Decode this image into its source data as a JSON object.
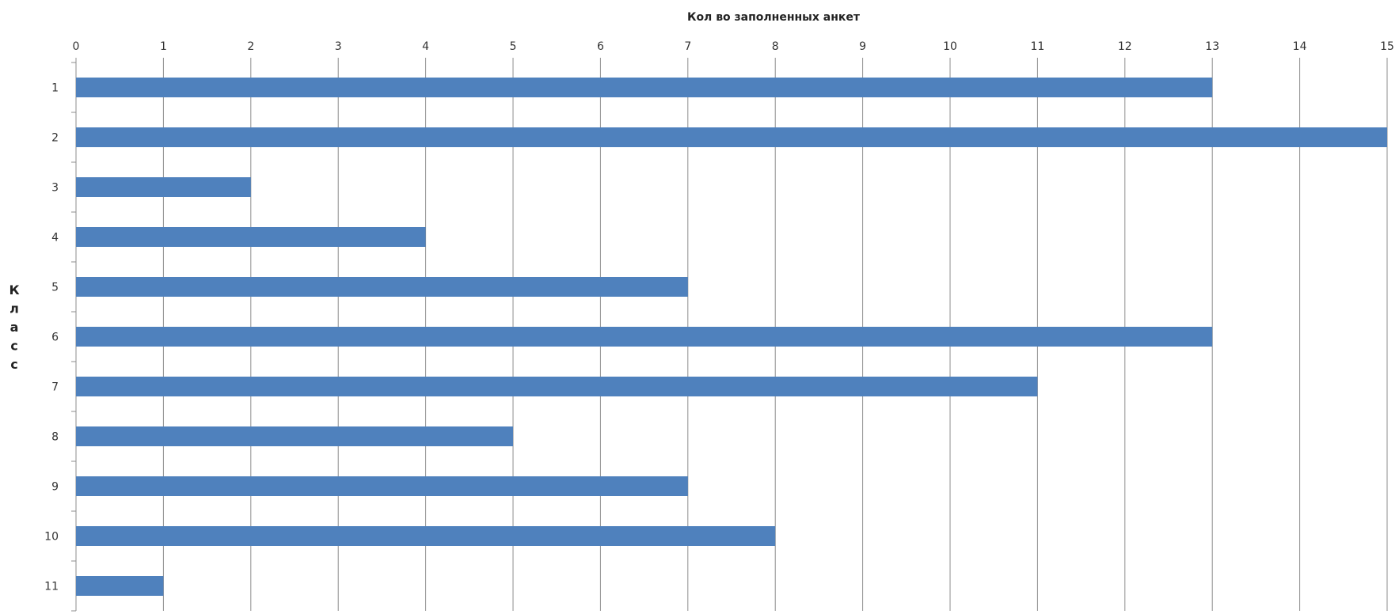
{
  "chart_data": {
    "type": "bar",
    "orientation": "horizontal",
    "xlabel": "Кол во заполненных анкет",
    "ylabel": "Класс",
    "x_axis_position": "top",
    "categories": [
      "1",
      "2",
      "3",
      "4",
      "5",
      "6",
      "7",
      "8",
      "9",
      "10",
      "11"
    ],
    "values": [
      13,
      15,
      2,
      4,
      7,
      13,
      11,
      5,
      7,
      8,
      1
    ],
    "xlim": [
      0,
      15
    ],
    "xticks": [
      "0",
      "1",
      "2",
      "3",
      "4",
      "5",
      "6",
      "7",
      "8",
      "9",
      "10",
      "11",
      "12",
      "13",
      "14",
      "15"
    ],
    "grid": "vertical",
    "legend": "none",
    "bar_color": "#4F81BD",
    "grid_color": "#8C8C8C"
  }
}
